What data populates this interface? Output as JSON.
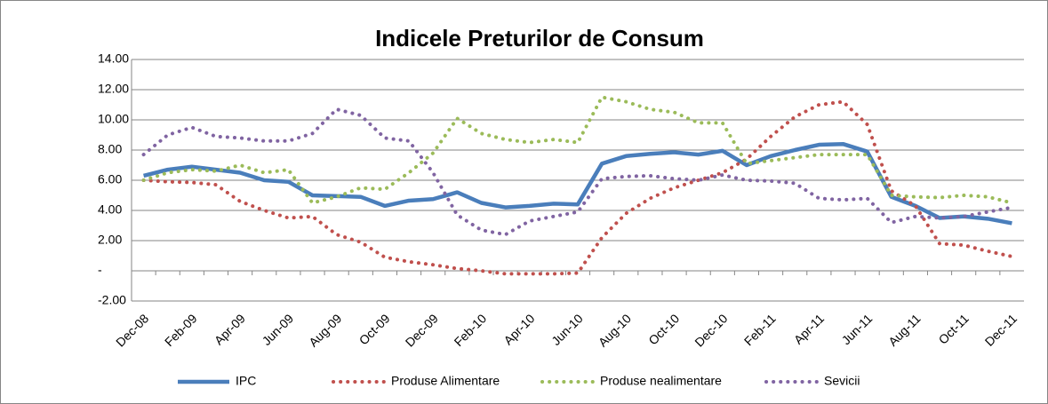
{
  "chart_data": {
    "type": "line",
    "title": "Indicele Preturilor de Consum",
    "categories": [
      "Dec-08",
      null,
      "Feb-09",
      null,
      "Apr-09",
      null,
      "Jun-09",
      null,
      "Aug-09",
      null,
      "Oct-09",
      null,
      "Dec-09",
      null,
      "Feb-10",
      null,
      "Apr-10",
      null,
      "Jun-10",
      null,
      "Aug-10",
      null,
      "Oct-10",
      null,
      "Dec-10",
      null,
      "Feb-11",
      null,
      "Apr-11",
      null,
      "Jun-11",
      null,
      "Aug-11",
      null,
      "Oct-11",
      null,
      "Dec-11"
    ],
    "series": [
      {
        "name": "IPC",
        "color": "#4a7ebb",
        "style": "solid",
        "values": [
          6.3,
          6.7,
          6.9,
          6.7,
          6.5,
          6.0,
          5.9,
          5.0,
          4.95,
          4.9,
          4.3,
          4.65,
          4.75,
          5.2,
          4.5,
          4.2,
          4.3,
          4.45,
          4.4,
          7.1,
          7.6,
          7.75,
          7.85,
          7.7,
          7.95,
          7.0,
          7.6,
          8.0,
          8.35,
          8.4,
          7.9,
          4.9,
          4.3,
          3.5,
          3.6,
          3.45,
          3.15
        ]
      },
      {
        "name": "Produse Alimentare",
        "color": "#c0504d",
        "style": "dotted",
        "values": [
          6.0,
          5.9,
          5.85,
          5.7,
          4.6,
          4.0,
          3.5,
          3.6,
          2.4,
          1.9,
          0.9,
          0.6,
          0.4,
          0.15,
          0.0,
          -0.2,
          -0.2,
          -0.2,
          -0.15,
          2.2,
          3.8,
          4.8,
          5.5,
          6.0,
          6.5,
          7.4,
          8.9,
          10.2,
          11.0,
          11.2,
          9.7,
          5.3,
          4.3,
          1.8,
          1.7,
          1.3,
          0.95
        ]
      },
      {
        "name": "Produse nealimentare",
        "color": "#9bbb59",
        "style": "dotted",
        "values": [
          6.0,
          6.5,
          6.7,
          6.6,
          7.0,
          6.5,
          6.7,
          4.5,
          4.9,
          5.5,
          5.4,
          6.5,
          7.8,
          10.1,
          9.1,
          8.7,
          8.5,
          8.7,
          8.5,
          11.5,
          11.2,
          10.7,
          10.5,
          9.8,
          9.8,
          7.1,
          7.3,
          7.5,
          7.7,
          7.7,
          7.7,
          5.0,
          4.9,
          4.85,
          5.0,
          4.9,
          4.5
        ]
      },
      {
        "name": "Sevicii",
        "color": "#8064a2",
        "style": "dotted",
        "values": [
          7.7,
          9.0,
          9.5,
          8.9,
          8.8,
          8.6,
          8.6,
          9.1,
          10.7,
          10.3,
          8.8,
          8.6,
          6.5,
          3.7,
          2.7,
          2.4,
          3.3,
          3.6,
          3.9,
          6.1,
          6.25,
          6.3,
          6.1,
          6.0,
          6.35,
          6.0,
          5.95,
          5.8,
          4.8,
          4.7,
          4.8,
          3.2,
          3.6,
          3.5,
          3.6,
          3.9,
          4.2
        ]
      }
    ],
    "ylim": [
      -2,
      14
    ],
    "yticks": [
      {
        "value": -2,
        "label": "-2.00"
      },
      {
        "value": 0,
        "label": "-"
      },
      {
        "value": 2,
        "label": "2.00"
      },
      {
        "value": 4,
        "label": "4.00"
      },
      {
        "value": 6,
        "label": "6.00"
      },
      {
        "value": 8,
        "label": "8.00"
      },
      {
        "value": 10,
        "label": "10.00"
      },
      {
        "value": 12,
        "label": "12.00"
      },
      {
        "value": 14,
        "label": "14.00"
      }
    ],
    "grid": true,
    "legend": "bottom"
  }
}
